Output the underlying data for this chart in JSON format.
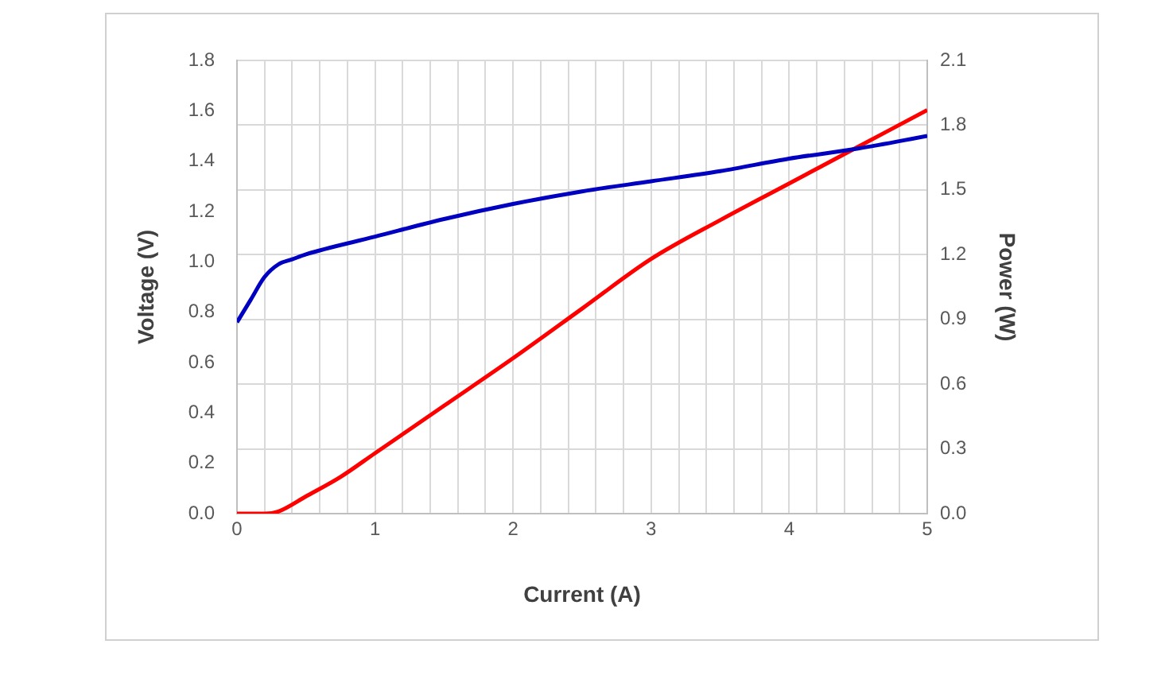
{
  "chart_data": {
    "type": "line",
    "xlabel": "Current (A)",
    "ylabel": "Voltage (V)",
    "y2label": "Power (W)",
    "xlim": [
      0,
      5
    ],
    "xticks": [
      0,
      {
        "value": 0.2,
        "label": null
      },
      {
        "value": 0.4,
        "label": null
      },
      {
        "value": 0.6,
        "label": null
      },
      {
        "value": 0.8,
        "label": null
      },
      1,
      {
        "value": 1.2,
        "label": null
      },
      {
        "value": 1.4,
        "label": null
      },
      {
        "value": 1.6,
        "label": null
      },
      {
        "value": 1.8,
        "label": null
      },
      2,
      {
        "value": 2.2,
        "label": null
      },
      {
        "value": 2.4,
        "label": null
      },
      {
        "value": 2.6,
        "label": null
      },
      {
        "value": 2.8,
        "label": null
      },
      3,
      {
        "value": 3.2,
        "label": null
      },
      {
        "value": 3.4,
        "label": null
      },
      {
        "value": 3.6,
        "label": null
      },
      {
        "value": 3.8,
        "label": null
      },
      4,
      {
        "value": 4.2,
        "label": null
      },
      {
        "value": 4.4,
        "label": null
      },
      {
        "value": 4.6,
        "label": null
      },
      {
        "value": 4.8,
        "label": null
      },
      5
    ],
    "ylim": [
      0,
      1.8
    ],
    "yticks": [
      {
        "value": 0,
        "label": "0.0"
      },
      {
        "value": 0.2,
        "label": "0.2"
      },
      {
        "value": 0.4,
        "label": "0.4"
      },
      {
        "value": 0.6,
        "label": "0.6"
      },
      {
        "value": 0.8,
        "label": "0.8"
      },
      {
        "value": 1,
        "label": "1.0"
      },
      {
        "value": 1.2,
        "label": "1.2"
      },
      {
        "value": 1.4,
        "label": "1.4"
      },
      {
        "value": 1.6,
        "label": "1.6"
      },
      {
        "value": 1.8,
        "label": "1.8"
      }
    ],
    "y2lim": [
      0,
      2.1
    ],
    "y2ticks": [
      {
        "value": 0,
        "label": "0.0"
      },
      0.3,
      0.6,
      0.9,
      {
        "value": 1.2,
        "label": "1.2"
      },
      1.5,
      1.8,
      2.1
    ],
    "grid": true,
    "marker": "none",
    "line_style": "solid",
    "series": [
      {
        "color": "#0000c0",
        "x": [
          0,
          0.1,
          0.2,
          0.3,
          0.4,
          0.5,
          1,
          1.5,
          2,
          2.5,
          3,
          3.5,
          4,
          4.5,
          5
        ],
        "values": [
          0.76,
          0.85,
          0.94,
          0.99,
          1.01,
          1.03,
          1.1,
          1.17,
          1.23,
          1.28,
          1.32,
          1.36,
          1.41,
          1.45,
          1.5
        ]
      },
      {
        "color": "#ff0000",
        "axis": "y2",
        "x": [
          0,
          0.2,
          0.3,
          0.5,
          0.75,
          1,
          1.5,
          2,
          2.5,
          3,
          3.5,
          4,
          4.5,
          5
        ],
        "values": [
          0,
          0,
          0.01,
          0.08,
          0.17,
          0.28,
          0.5,
          0.72,
          0.95,
          1.18,
          1.36,
          1.53,
          1.7,
          1.87
        ]
      }
    ]
  }
}
